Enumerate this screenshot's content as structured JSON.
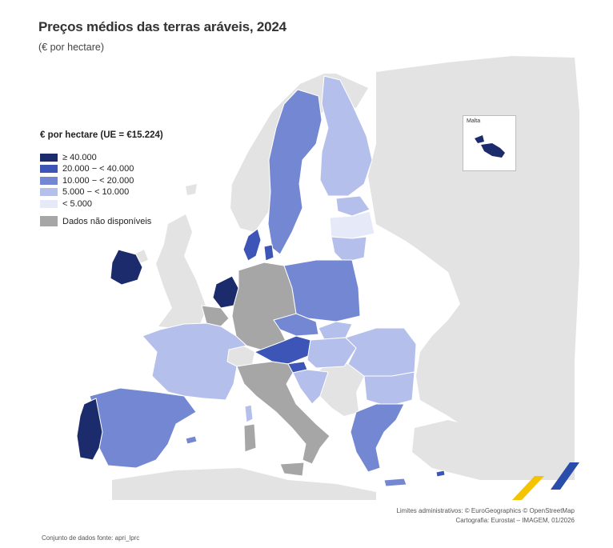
{
  "header": {
    "title": "Preços médios das terras aráveis, 2024",
    "subtitle": "(€ por hectare)"
  },
  "legend": {
    "title": "€ por hectare (UE = €15.224)",
    "classes": [
      {
        "label": "≥ 40.000",
        "color": "#1b2b6b"
      },
      {
        "label": "20.000 − < 40.000",
        "color": "#3c55b6"
      },
      {
        "label": "10.000 − < 20.000",
        "color": "#7387d2"
      },
      {
        "label": "5.000 − < 10.000",
        "color": "#b4bfeb"
      },
      {
        "label": "< 5.000",
        "color": "#e6e9f8"
      }
    ],
    "na_label": "Dados não disponíveis",
    "na_color": "#a6a6a6"
  },
  "inset": {
    "label": "Malta"
  },
  "credits": {
    "line1": "Limites administrativos: © EuroGeographics © OpenStreetMap",
    "line2": "Cartografia: Eurostat – IMAGEM, 01/2026"
  },
  "source": "Conjunto de dados fonte: apri_lprc",
  "colors": {
    "sea": "#ffffff",
    "non_eu": "#e3e3e3",
    "border": "#ffffff"
  }
}
